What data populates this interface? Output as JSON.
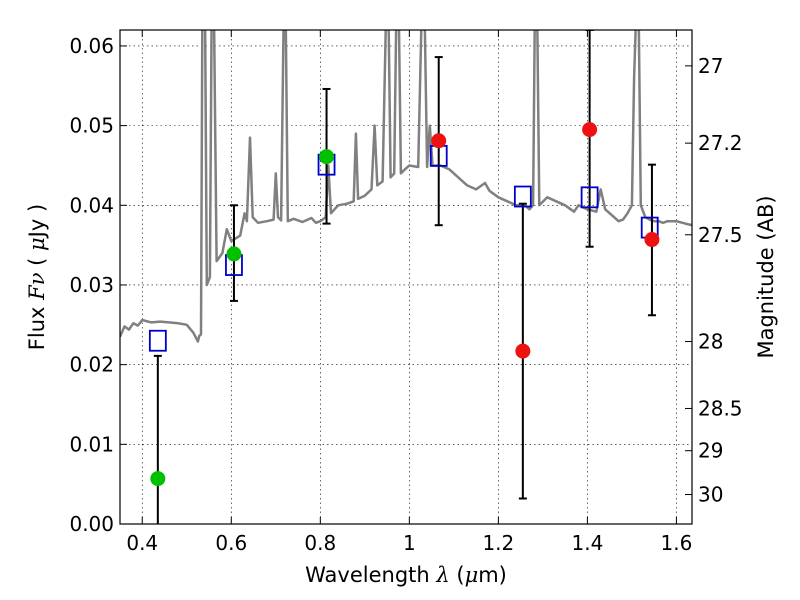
{
  "chart_data": {
    "type": "scatter",
    "title": "",
    "xlabel": "Wavelength  λ (μm)",
    "ylabel": "Flux  Fν  ( μJy )",
    "y2label": "Magnitude (AB)",
    "xlim": [
      0.35,
      1.635
    ],
    "ylim": [
      0.0,
      0.062
    ],
    "grid": true,
    "x_ticks": [
      0.4,
      0.6,
      0.8,
      1.0,
      1.2,
      1.4,
      1.6
    ],
    "x_tick_labels": [
      "0.4",
      "0.6",
      "0.8",
      "1",
      "1.2",
      "1.4",
      "1.6"
    ],
    "y_ticks": [
      0.0,
      0.01,
      0.02,
      0.03,
      0.04,
      0.05,
      0.06
    ],
    "y_tick_labels": [
      "0.00",
      "0.01",
      "0.02",
      "0.03",
      "0.04",
      "0.05",
      "0.06"
    ],
    "y2_ticks": [
      {
        "label": "27",
        "flux": 0.0575
      },
      {
        "label": "27.2",
        "flux": 0.0478
      },
      {
        "label": "27.5",
        "flux": 0.0363
      },
      {
        "label": "28",
        "flux": 0.0229
      },
      {
        "label": "28.5",
        "flux": 0.0145
      },
      {
        "label": "29",
        "flux": 0.0092
      },
      {
        "label": "30",
        "flux": 0.0037
      }
    ],
    "colors": {
      "model": "#808080",
      "green": "#00c000",
      "red": "#ee1111",
      "square": "#0000cc",
      "errorbar": "#000000"
    },
    "model_spectrum": [
      [
        0.35,
        0.0235
      ],
      [
        0.36,
        0.0248
      ],
      [
        0.37,
        0.0244
      ],
      [
        0.38,
        0.0252
      ],
      [
        0.39,
        0.0249
      ],
      [
        0.4,
        0.0256
      ],
      [
        0.42,
        0.0253
      ],
      [
        0.44,
        0.0254
      ],
      [
        0.46,
        0.0253
      ],
      [
        0.48,
        0.0252
      ],
      [
        0.5,
        0.025
      ],
      [
        0.515,
        0.024
      ],
      [
        0.525,
        0.0229
      ],
      [
        0.528,
        0.0236
      ],
      [
        0.532,
        0.0238
      ],
      [
        0.535,
        0.065
      ],
      [
        0.541,
        0.065
      ],
      [
        0.545,
        0.03
      ],
      [
        0.552,
        0.031
      ],
      [
        0.556,
        0.065
      ],
      [
        0.561,
        0.065
      ],
      [
        0.567,
        0.033
      ],
      [
        0.58,
        0.034
      ],
      [
        0.59,
        0.037
      ],
      [
        0.6,
        0.0355
      ],
      [
        0.62,
        0.0362
      ],
      [
        0.63,
        0.039
      ],
      [
        0.635,
        0.038
      ],
      [
        0.642,
        0.0485
      ],
      [
        0.648,
        0.0385
      ],
      [
        0.66,
        0.0378
      ],
      [
        0.68,
        0.038
      ],
      [
        0.695,
        0.0382
      ],
      [
        0.7,
        0.044
      ],
      [
        0.705,
        0.0385
      ],
      [
        0.712,
        0.0381
      ],
      [
        0.718,
        0.065
      ],
      [
        0.722,
        0.065
      ],
      [
        0.727,
        0.038
      ],
      [
        0.74,
        0.0383
      ],
      [
        0.76,
        0.0379
      ],
      [
        0.78,
        0.0384
      ],
      [
        0.79,
        0.0378
      ],
      [
        0.8,
        0.038
      ],
      [
        0.812,
        0.0385
      ],
      [
        0.818,
        0.045
      ],
      [
        0.824,
        0.039
      ],
      [
        0.84,
        0.04
      ],
      [
        0.86,
        0.0402
      ],
      [
        0.875,
        0.0405
      ],
      [
        0.88,
        0.049
      ],
      [
        0.885,
        0.0408
      ],
      [
        0.9,
        0.0412
      ],
      [
        0.915,
        0.042
      ],
      [
        0.922,
        0.05
      ],
      [
        0.928,
        0.0425
      ],
      [
        0.94,
        0.043
      ],
      [
        0.948,
        0.065
      ],
      [
        0.953,
        0.065
      ],
      [
        0.958,
        0.0435
      ],
      [
        0.966,
        0.044
      ],
      [
        0.971,
        0.065
      ],
      [
        0.976,
        0.065
      ],
      [
        0.981,
        0.044
      ],
      [
        0.99,
        0.0445
      ],
      [
        1.0,
        0.045
      ],
      [
        1.02,
        0.0448
      ],
      [
        1.028,
        0.065
      ],
      [
        1.034,
        0.065
      ],
      [
        1.04,
        0.0448
      ],
      [
        1.046,
        0.05
      ],
      [
        1.052,
        0.045
      ],
      [
        1.07,
        0.045
      ],
      [
        1.09,
        0.0445
      ],
      [
        1.11,
        0.0435
      ],
      [
        1.13,
        0.0425
      ],
      [
        1.15,
        0.042
      ],
      [
        1.17,
        0.0428
      ],
      [
        1.18,
        0.0418
      ],
      [
        1.2,
        0.041
      ],
      [
        1.22,
        0.0405
      ],
      [
        1.24,
        0.04
      ],
      [
        1.26,
        0.04
      ],
      [
        1.27,
        0.0395
      ],
      [
        1.278,
        0.04
      ],
      [
        1.282,
        0.065
      ],
      [
        1.287,
        0.065
      ],
      [
        1.292,
        0.04
      ],
      [
        1.31,
        0.041
      ],
      [
        1.33,
        0.0405
      ],
      [
        1.35,
        0.04
      ],
      [
        1.37,
        0.0392
      ],
      [
        1.38,
        0.04
      ],
      [
        1.4,
        0.0395
      ],
      [
        1.42,
        0.0392
      ],
      [
        1.43,
        0.042
      ],
      [
        1.44,
        0.0395
      ],
      [
        1.46,
        0.0385
      ],
      [
        1.47,
        0.038
      ],
      [
        1.48,
        0.0382
      ],
      [
        1.49,
        0.039
      ],
      [
        1.5,
        0.04
      ],
      [
        1.505,
        0.056
      ],
      [
        1.51,
        0.065
      ],
      [
        1.515,
        0.065
      ],
      [
        1.52,
        0.04
      ],
      [
        1.53,
        0.0385
      ],
      [
        1.54,
        0.0382
      ],
      [
        1.55,
        0.038
      ],
      [
        1.56,
        0.038
      ],
      [
        1.57,
        0.0378
      ],
      [
        1.58,
        0.038
      ],
      [
        1.59,
        0.038
      ],
      [
        1.6,
        0.038
      ],
      [
        1.62,
        0.0377
      ],
      [
        1.635,
        0.0375
      ]
    ],
    "squares": [
      {
        "x": 0.435,
        "y": 0.023
      },
      {
        "x": 0.606,
        "y": 0.0325
      },
      {
        "x": 0.814,
        "y": 0.0451
      },
      {
        "x": 1.066,
        "y": 0.0462
      },
      {
        "x": 1.255,
        "y": 0.0411
      },
      {
        "x": 1.405,
        "y": 0.041
      },
      {
        "x": 1.54,
        "y": 0.0372
      }
    ],
    "green_points": [
      {
        "x": 0.435,
        "y": 0.0057,
        "err_low": 0.0,
        "err_high": 0.0211
      },
      {
        "x": 0.606,
        "y": 0.0339,
        "err_low": 0.028,
        "err_high": 0.04
      },
      {
        "x": 0.814,
        "y": 0.0461,
        "err_low": 0.0377,
        "err_high": 0.0546
      }
    ],
    "red_points": [
      {
        "x": 1.066,
        "y": 0.0481,
        "err_low": 0.0375,
        "err_high": 0.0586
      },
      {
        "x": 1.255,
        "y": 0.0217,
        "err_low": 0.0032,
        "err_high": 0.0402
      },
      {
        "x": 1.405,
        "y": 0.0495,
        "err_low": 0.0348,
        "err_high": 0.062
      },
      {
        "x": 1.545,
        "y": 0.0357,
        "err_low": 0.0262,
        "err_high": 0.0451
      }
    ]
  }
}
